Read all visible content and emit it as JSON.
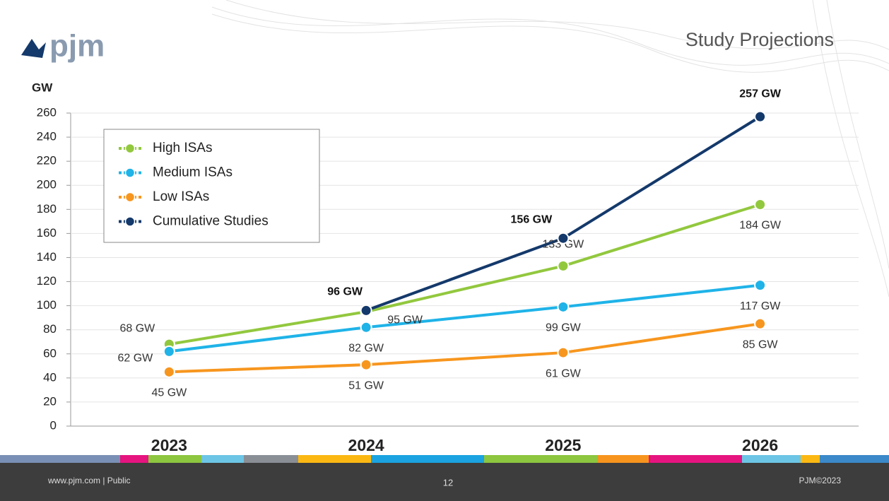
{
  "page": {
    "logo": "pjm",
    "footer_left": "www.pjm.com | Public",
    "page_number": "12",
    "footer_right": "PJM©2023"
  },
  "chart_data": {
    "type": "line",
    "title": "Study Projections",
    "y_label": "GW",
    "categories": [
      "2023",
      "2024",
      "2025",
      "2026"
    ],
    "series": [
      {
        "name": "High ISAs",
        "color": "#92c83e",
        "values": [
          68,
          95,
          133,
          184
        ],
        "value_labels": [
          "68 GW",
          "95 GW",
          "133 GW",
          "184 GW"
        ]
      },
      {
        "name": "Medium ISAs",
        "color": "#1fb3e8",
        "values": [
          62,
          82,
          99,
          117
        ],
        "value_labels": [
          "62 GW",
          "82 GW",
          "99 GW",
          "117 GW"
        ]
      },
      {
        "name": "Low ISAs",
        "color": "#f7961e",
        "values": [
          45,
          51,
          61,
          85
        ],
        "value_labels": [
          "45 GW",
          "51 GW",
          "61 GW",
          "85 GW"
        ]
      },
      {
        "name": "Cumulative Studies",
        "color": "#14396b",
        "values": [
          null,
          96,
          156,
          257
        ],
        "value_labels": [
          null,
          "96 GW",
          "156 GW",
          "257 GW"
        ]
      }
    ],
    "ylim": [
      0,
      260
    ],
    "yticks": [
      0,
      20,
      40,
      60,
      80,
      100,
      120,
      140,
      160,
      180,
      200,
      220,
      240,
      260
    ],
    "grid": true,
    "legend": "upper left"
  }
}
